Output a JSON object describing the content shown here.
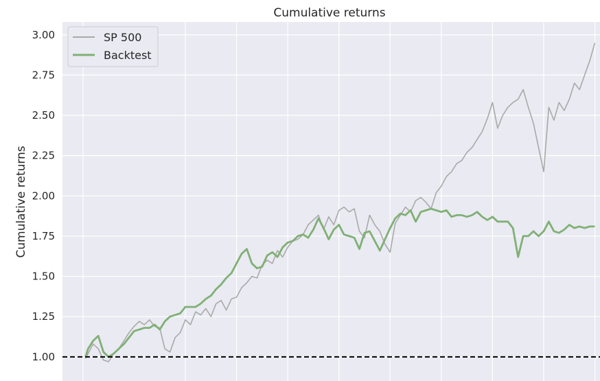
{
  "chart_data": {
    "type": "line",
    "title": "Cumulative returns",
    "xlabel": "",
    "ylabel": "Cumulative returns",
    "ylim": [
      0.85,
      3.08
    ],
    "yticks": [
      1.0,
      1.25,
      1.5,
      1.75,
      2.0,
      2.25,
      2.5,
      2.75,
      3.0
    ],
    "ytick_labels": [
      "1.00",
      "1.25",
      "1.50",
      "1.75",
      "2.00",
      "2.25",
      "2.50",
      "2.75",
      "3.00"
    ],
    "xlim": [
      -0.4,
      10.1
    ],
    "x_gridlines": [
      0,
      2,
      3,
      4,
      5,
      6,
      7,
      8,
      9,
      10
    ],
    "reference_line": {
      "y": 1.0,
      "style": "dashed",
      "color": "#000000"
    },
    "grid": true,
    "legend": "upper-left",
    "series": [
      {
        "name": "SP 500",
        "color": "#a9a9a9",
        "x": [
          0.05,
          0.1,
          0.2,
          0.3,
          0.4,
          0.5,
          0.6,
          0.7,
          0.8,
          0.9,
          1.0,
          1.1,
          1.2,
          1.3,
          1.4,
          1.5,
          1.6,
          1.7,
          1.8,
          1.9,
          2.0,
          2.1,
          2.2,
          2.3,
          2.4,
          2.5,
          2.6,
          2.7,
          2.8,
          2.9,
          3.0,
          3.1,
          3.2,
          3.3,
          3.4,
          3.5,
          3.6,
          3.7,
          3.8,
          3.9,
          4.0,
          4.1,
          4.2,
          4.3,
          4.4,
          4.5,
          4.6,
          4.7,
          4.8,
          4.9,
          5.0,
          5.1,
          5.2,
          5.3,
          5.4,
          5.5,
          5.6,
          5.7,
          5.8,
          5.9,
          6.0,
          6.1,
          6.2,
          6.3,
          6.4,
          6.5,
          6.6,
          6.7,
          6.8,
          6.9,
          7.0,
          7.1,
          7.2,
          7.3,
          7.4,
          7.5,
          7.6,
          7.7,
          7.8,
          7.9,
          8.0,
          8.1,
          8.2,
          8.3,
          8.4,
          8.5,
          8.6,
          8.7,
          8.8,
          8.9,
          9.0,
          9.1,
          9.2,
          9.3,
          9.4,
          9.5,
          9.6,
          9.7,
          9.8,
          9.9,
          10.0
        ],
        "y": [
          0.99,
          1.02,
          1.08,
          1.05,
          0.98,
          0.97,
          1.02,
          1.05,
          1.1,
          1.15,
          1.19,
          1.22,
          1.2,
          1.23,
          1.19,
          1.18,
          1.05,
          1.03,
          1.12,
          1.15,
          1.23,
          1.2,
          1.28,
          1.26,
          1.3,
          1.25,
          1.33,
          1.35,
          1.29,
          1.36,
          1.37,
          1.43,
          1.46,
          1.5,
          1.49,
          1.57,
          1.6,
          1.58,
          1.66,
          1.62,
          1.68,
          1.72,
          1.73,
          1.76,
          1.82,
          1.85,
          1.88,
          1.79,
          1.87,
          1.82,
          1.91,
          1.93,
          1.9,
          1.92,
          1.78,
          1.74,
          1.88,
          1.82,
          1.78,
          1.7,
          1.65,
          1.83,
          1.88,
          1.93,
          1.9,
          1.97,
          1.99,
          1.96,
          1.92,
          2.02,
          2.06,
          2.12,
          2.15,
          2.2,
          2.22,
          2.27,
          2.3,
          2.35,
          2.4,
          2.48,
          2.58,
          2.42,
          2.5,
          2.55,
          2.58,
          2.6,
          2.66,
          2.55,
          2.45,
          2.3,
          2.15,
          2.55,
          2.47,
          2.58,
          2.53,
          2.6,
          2.7,
          2.66,
          2.75,
          2.84,
          2.95
        ]
      },
      {
        "name": "Backtest",
        "color": "#7fb074",
        "x": [
          0.05,
          0.1,
          0.2,
          0.3,
          0.4,
          0.5,
          0.6,
          0.7,
          0.8,
          0.9,
          1.0,
          1.1,
          1.2,
          1.3,
          1.4,
          1.5,
          1.6,
          1.7,
          1.8,
          1.9,
          2.0,
          2.1,
          2.2,
          2.3,
          2.4,
          2.5,
          2.6,
          2.7,
          2.8,
          2.9,
          3.0,
          3.1,
          3.2,
          3.3,
          3.4,
          3.5,
          3.6,
          3.7,
          3.8,
          3.9,
          4.0,
          4.1,
          4.2,
          4.3,
          4.4,
          4.5,
          4.6,
          4.7,
          4.8,
          4.9,
          5.0,
          5.1,
          5.2,
          5.3,
          5.4,
          5.5,
          5.6,
          5.7,
          5.8,
          5.9,
          6.0,
          6.1,
          6.2,
          6.3,
          6.4,
          6.5,
          6.6,
          6.7,
          6.8,
          6.9,
          7.0,
          7.1,
          7.2,
          7.3,
          7.4,
          7.5,
          7.6,
          7.7,
          7.8,
          7.9,
          8.0,
          8.1,
          8.2,
          8.3,
          8.4,
          8.5,
          8.6,
          8.7,
          8.8,
          8.9,
          9.0,
          9.1,
          9.2,
          9.3,
          9.4,
          9.5,
          9.6,
          9.7,
          9.8,
          9.9,
          10.0
        ],
        "y": [
          1.0,
          1.05,
          1.1,
          1.13,
          1.03,
          1.0,
          1.02,
          1.05,
          1.08,
          1.12,
          1.16,
          1.17,
          1.18,
          1.18,
          1.2,
          1.17,
          1.22,
          1.25,
          1.26,
          1.27,
          1.31,
          1.31,
          1.31,
          1.33,
          1.36,
          1.38,
          1.42,
          1.45,
          1.49,
          1.52,
          1.58,
          1.64,
          1.67,
          1.58,
          1.55,
          1.56,
          1.63,
          1.65,
          1.62,
          1.68,
          1.71,
          1.72,
          1.75,
          1.76,
          1.74,
          1.79,
          1.86,
          1.8,
          1.73,
          1.79,
          1.82,
          1.76,
          1.75,
          1.74,
          1.67,
          1.77,
          1.78,
          1.72,
          1.66,
          1.73,
          1.8,
          1.86,
          1.89,
          1.88,
          1.91,
          1.84,
          1.9,
          1.91,
          1.92,
          1.91,
          1.9,
          1.91,
          1.87,
          1.88,
          1.88,
          1.87,
          1.88,
          1.9,
          1.87,
          1.85,
          1.87,
          1.84,
          1.84,
          1.84,
          1.8,
          1.62,
          1.75,
          1.75,
          1.78,
          1.75,
          1.78,
          1.84,
          1.78,
          1.77,
          1.79,
          1.82,
          1.8,
          1.81,
          1.8,
          1.81,
          1.81
        ]
      }
    ]
  }
}
